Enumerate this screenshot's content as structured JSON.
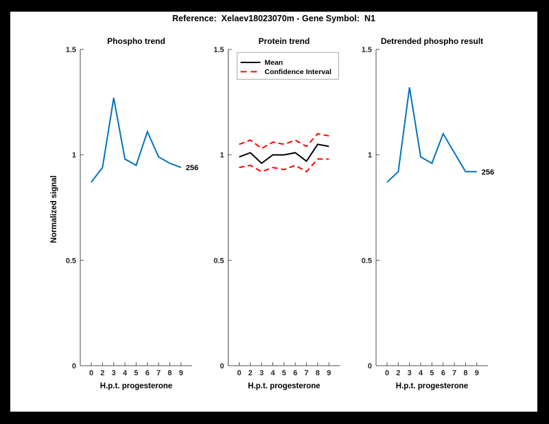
{
  "figure": {
    "title": "Reference:  Xelaev18023070m - Gene Symbol:  N1"
  },
  "colors": {
    "background": "#000000",
    "canvas": "#ffffff",
    "blue": "#0072BD",
    "red": "#FF0000",
    "black": "#000000",
    "axis_line": "#4d4d4d",
    "tick_text": "#262626",
    "legend_border": "#aaaaaa"
  },
  "axes": {
    "ylabel": "Normalized signal",
    "xlabel": "H.p.t. progesterone",
    "ylim": [
      0,
      1.5
    ],
    "yticks": [
      0,
      0.5,
      1,
      1.5
    ],
    "ytick_labels": [
      "0",
      "0.5",
      "1",
      "1.5"
    ],
    "xtick_labels": [
      "0",
      "2",
      "3",
      "4",
      "5",
      "6",
      "7",
      "8",
      "9"
    ]
  },
  "chart_data": [
    {
      "type": "line",
      "title": "Phospho trend",
      "xlabel": "H.p.t. progesterone",
      "ylabel": "Normalized signal",
      "ylim": [
        0,
        1.5
      ],
      "categories": [
        "0",
        "2",
        "3",
        "4",
        "5",
        "6",
        "7",
        "8",
        "9"
      ],
      "series": [
        {
          "name": "Phospho signal",
          "color": "#0072BD",
          "style": "solid",
          "values": [
            0.87,
            0.94,
            1.27,
            0.98,
            0.95,
            1.11,
            0.99,
            0.96,
            0.94
          ]
        }
      ],
      "end_label": "256"
    },
    {
      "type": "line",
      "title": "Protein trend",
      "xlabel": "H.p.t. progesterone",
      "ylim": [
        0,
        1.5
      ],
      "categories": [
        "0",
        "2",
        "3",
        "4",
        "5",
        "6",
        "7",
        "8",
        "9"
      ],
      "legend": [
        {
          "label": "Mean",
          "color": "#000000",
          "style": "solid"
        },
        {
          "label": "Confidence Interval",
          "color": "#FF0000",
          "style": "dashed"
        }
      ],
      "series": [
        {
          "name": "Confidence Interval upper",
          "color": "#FF0000",
          "style": "dashed",
          "values": [
            1.05,
            1.07,
            1.03,
            1.06,
            1.05,
            1.07,
            1.04,
            1.1,
            1.09
          ]
        },
        {
          "name": "Confidence Interval lower",
          "color": "#FF0000",
          "style": "dashed",
          "values": [
            0.94,
            0.95,
            0.92,
            0.94,
            0.93,
            0.95,
            0.92,
            0.98,
            0.98
          ]
        },
        {
          "name": "Mean",
          "color": "#000000",
          "style": "solid",
          "values": [
            0.99,
            1.01,
            0.96,
            1.0,
            1.0,
            1.01,
            0.97,
            1.05,
            1.04
          ]
        }
      ]
    },
    {
      "type": "line",
      "title": "Detrended phospho result",
      "xlabel": "H.p.t. progesterone",
      "ylim": [
        0,
        1.5
      ],
      "categories": [
        "0",
        "2",
        "3",
        "4",
        "5",
        "6",
        "7",
        "8",
        "9"
      ],
      "series": [
        {
          "name": "Detrended phospho signal",
          "color": "#0072BD",
          "style": "solid",
          "values": [
            0.87,
            0.92,
            1.32,
            0.99,
            0.96,
            1.1,
            1.01,
            0.92,
            0.92
          ]
        }
      ],
      "end_label": "256"
    }
  ]
}
